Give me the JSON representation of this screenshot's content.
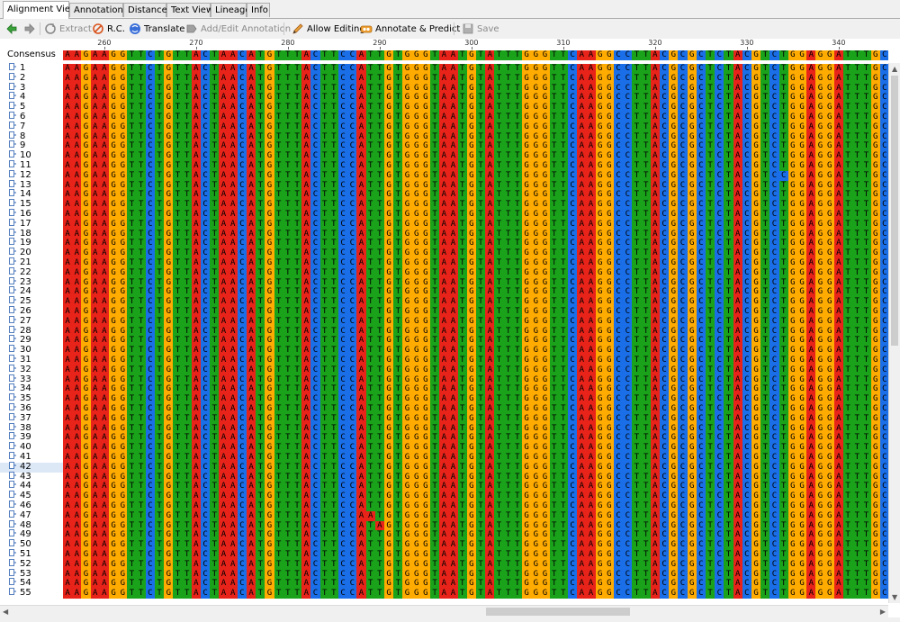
{
  "tabs": [
    {
      "label": "Alignment View"
    },
    {
      "label": "Annotations"
    },
    {
      "label": "Distances"
    },
    {
      "label": "Text View"
    },
    {
      "label": "Lineage"
    },
    {
      "label": "Info"
    }
  ],
  "toolbar": {
    "extract": "Extract",
    "rc": "R.C.",
    "translate": "Translate",
    "add_edit_annotation": "Add/Edit Annotation",
    "allow_editing": "Allow Editing",
    "annotate_predict": "Annotate & Predict",
    "save": "Save"
  },
  "ruler": {
    "start_position": 256,
    "marks": [
      "260",
      "270",
      "280",
      "290",
      "300",
      "310",
      "320",
      "330",
      "340"
    ]
  },
  "consensus_label": "Consensus",
  "consensus_seq": "AAGAAGGTTCTGTTACTAACATGTTTACTTCCATTGTGGGTAATGTATTTGGGTTCAAGGCCTTACGCGCTCTACGTCTGGAGGATTTGCG",
  "sequences": {
    "count": 55,
    "default_seq": "AAGAAGGTTCTGTTACTAACATGTTTACTTCCATTGTGGGTAATGTATTTGGGTTCAAGGCCTTACGCGCTCTACGTCTGGAGGATTTGCG",
    "variants": {
      "11": "AAGAAGGTTCTGTTACTAACATGTTTACTTCCATTGTGGGTAATGTATTTGGGTTCAAGGCCTTACGCGCTCTACGTCTGGAGGATTTGCG",
      "12": "AAGAAGGTTCTGTTACTAACATGTTTACTTCCATTGTGGGTAATGTATTTGGGTTCAAGGCCTTACGCGCTCTACGTCCGGAGGATTTGCG",
      "47": "AAGAAGGTTCTGTTACTAACATGTTTACTTCCAATGTGGGTAATGTATTTGGGTTCAAGGCCTTACGCGCTCTACGTCTGGAGGATTTGCG",
      "48": "AAGAAGGTTCTGTTACTAACATGTTTACTTCCATAGTGGGTAATGTATTTGGGTTCAAGGCCTTACGCGCTCTACGTCTGGAGGATTTGCG"
    },
    "highlighted_row": 42
  },
  "base_colors": {
    "A": "#e8231a",
    "G": "#ffab00",
    "T": "#1aa31a",
    "C": "#1a6fe8"
  },
  "consensus_colors": {
    "A": "#e8231a",
    "G": "#ffab00",
    "T": "#1aa31a",
    "C": "#1a6fe8"
  },
  "icons": {
    "back": "arrow-left-icon",
    "forward": "arrow-right-icon",
    "extract": "extract-icon",
    "rc": "reverse-complement-icon",
    "translate": "translate-icon",
    "add_edit_annotation": "annotation-icon",
    "allow_editing": "pencil-icon",
    "annotate_predict": "annotate-predict-icon",
    "save": "save-icon",
    "document": "document-icon"
  }
}
